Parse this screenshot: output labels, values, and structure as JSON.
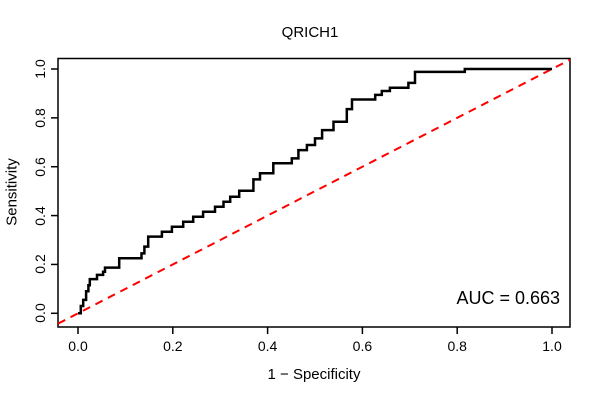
{
  "chart_data": {
    "type": "line",
    "subtype": "roc-step-curve",
    "title": "QRICH1",
    "xlabel": "1 − Specificity",
    "ylabel": "Sensitivity",
    "annotation": "AUC = 0.663",
    "auc": 0.663,
    "x_ticks": [
      "0.0",
      "0.2",
      "0.4",
      "0.6",
      "0.8",
      "1.0"
    ],
    "y_ticks": [
      "0.0",
      "0.2",
      "0.4",
      "0.6",
      "0.8",
      "1.0"
    ],
    "xlim": [
      -0.042,
      1.038
    ],
    "ylim": [
      -0.056,
      1.043
    ],
    "grid": false,
    "legend": "none",
    "curve_color": "#000000",
    "diagonal_color": "#ff0000",
    "axis_color": "#000000",
    "diagonal": {
      "from": [
        -0.042,
        -0.042
      ],
      "to": [
        1.038,
        1.038
      ],
      "style": "dashed"
    },
    "roc_points": [
      [
        0.0,
        0.0
      ],
      [
        0.006,
        0.0
      ],
      [
        0.006,
        0.03
      ],
      [
        0.011,
        0.03
      ],
      [
        0.011,
        0.055
      ],
      [
        0.017,
        0.055
      ],
      [
        0.017,
        0.09
      ],
      [
        0.022,
        0.09
      ],
      [
        0.022,
        0.115
      ],
      [
        0.025,
        0.115
      ],
      [
        0.025,
        0.14
      ],
      [
        0.04,
        0.14
      ],
      [
        0.04,
        0.157
      ],
      [
        0.053,
        0.157
      ],
      [
        0.053,
        0.17
      ],
      [
        0.057,
        0.17
      ],
      [
        0.057,
        0.187
      ],
      [
        0.087,
        0.187
      ],
      [
        0.087,
        0.225
      ],
      [
        0.134,
        0.225
      ],
      [
        0.134,
        0.245
      ],
      [
        0.14,
        0.245
      ],
      [
        0.14,
        0.273
      ],
      [
        0.148,
        0.273
      ],
      [
        0.148,
        0.314
      ],
      [
        0.177,
        0.314
      ],
      [
        0.177,
        0.334
      ],
      [
        0.198,
        0.334
      ],
      [
        0.198,
        0.354
      ],
      [
        0.222,
        0.354
      ],
      [
        0.222,
        0.375
      ],
      [
        0.243,
        0.375
      ],
      [
        0.243,
        0.395
      ],
      [
        0.264,
        0.395
      ],
      [
        0.264,
        0.416
      ],
      [
        0.289,
        0.416
      ],
      [
        0.289,
        0.436
      ],
      [
        0.307,
        0.436
      ],
      [
        0.307,
        0.457
      ],
      [
        0.321,
        0.457
      ],
      [
        0.321,
        0.477
      ],
      [
        0.34,
        0.477
      ],
      [
        0.34,
        0.502
      ],
      [
        0.37,
        0.502
      ],
      [
        0.37,
        0.548
      ],
      [
        0.384,
        0.548
      ],
      [
        0.384,
        0.573
      ],
      [
        0.412,
        0.573
      ],
      [
        0.412,
        0.614
      ],
      [
        0.451,
        0.614
      ],
      [
        0.451,
        0.634
      ],
      [
        0.465,
        0.634
      ],
      [
        0.465,
        0.668
      ],
      [
        0.483,
        0.668
      ],
      [
        0.483,
        0.689
      ],
      [
        0.5,
        0.689
      ],
      [
        0.5,
        0.716
      ],
      [
        0.515,
        0.716
      ],
      [
        0.515,
        0.75
      ],
      [
        0.539,
        0.75
      ],
      [
        0.539,
        0.784
      ],
      [
        0.567,
        0.784
      ],
      [
        0.567,
        0.836
      ],
      [
        0.578,
        0.836
      ],
      [
        0.578,
        0.875
      ],
      [
        0.627,
        0.875
      ],
      [
        0.627,
        0.894
      ],
      [
        0.641,
        0.894
      ],
      [
        0.641,
        0.91
      ],
      [
        0.658,
        0.91
      ],
      [
        0.658,
        0.923
      ],
      [
        0.697,
        0.923
      ],
      [
        0.697,
        0.943
      ],
      [
        0.711,
        0.943
      ],
      [
        0.711,
        0.988
      ],
      [
        0.816,
        0.988
      ],
      [
        0.816,
        1.0
      ],
      [
        1.0,
        1.0
      ]
    ]
  }
}
